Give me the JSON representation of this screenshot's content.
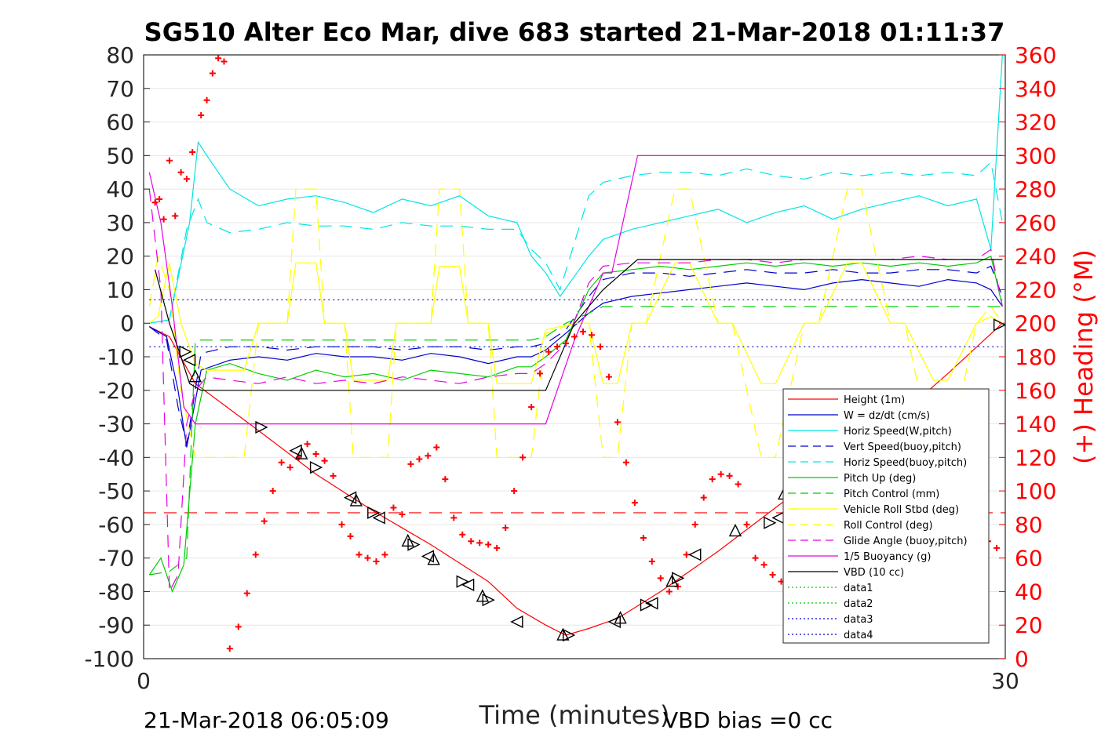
{
  "chart_data": {
    "type": "line",
    "title": "SG510 Alter Eco Mar, dive 683 started 21-Mar-2018 01:11:37",
    "xlabel": "Time (minutes)",
    "ylabel": "",
    "y2label": "(+) Heading (°M)",
    "xlim": [
      0,
      30
    ],
    "ylim": [
      -100,
      80
    ],
    "y2lim": [
      0,
      360
    ],
    "x_ticks": [
      "0",
      "30"
    ],
    "y_ticks": [
      "80",
      "70",
      "60",
      "50",
      "40",
      "30",
      "20",
      "10",
      "0",
      "-10",
      "-20",
      "-30",
      "-40",
      "-50",
      "-60",
      "-70",
      "-80",
      "-90",
      "-100"
    ],
    "y2_ticks": [
      "360",
      "340",
      "320",
      "300",
      "280",
      "260",
      "240",
      "220",
      "200",
      "180",
      "160",
      "140",
      "120",
      "100",
      "80",
      "60",
      "40",
      "20",
      "0"
    ],
    "grid": "horizontal",
    "legend_position": "bottom-right",
    "footer_left": "21-Mar-2018 06:05:09",
    "footer_right": "VBD bias =0 cc",
    "series": [
      {
        "name": "Height (1m)",
        "color": "#ff0000",
        "style": "solid",
        "x": [
          0.2,
          0.9,
          1.8,
          4.0,
          6.0,
          8.0,
          10.0,
          12.0,
          13.0,
          14.0,
          14.7,
          15.5,
          16.5,
          18.0,
          20.0,
          22.0,
          24.0,
          26.0,
          28.0,
          29.9
        ],
        "y": [
          -1,
          -4,
          -18,
          -32,
          -45,
          -56,
          -66,
          -77,
          -85,
          -90,
          -93,
          -91,
          -88,
          -80,
          -68,
          -55,
          -42,
          -30,
          -15,
          0
        ]
      },
      {
        "name": "W = dz/dt (cm/s)",
        "color": "#0000cc",
        "style": "solid",
        "x": [
          0.2,
          0.8,
          1.2,
          1.5,
          2.0,
          3,
          4,
          5,
          6,
          7,
          8,
          9,
          10,
          11,
          12,
          13,
          13.5,
          14,
          14.7,
          15.5,
          16,
          17,
          18,
          19,
          20,
          21,
          22,
          23,
          24,
          25,
          26,
          27,
          28,
          29,
          29.5,
          29.9
        ],
        "y": [
          -1,
          -4,
          -20,
          -37,
          -14,
          -11,
          -10,
          -11,
          -9,
          -10,
          -10,
          -11,
          -9,
          -10,
          -12,
          -10,
          -10,
          -8,
          -3,
          3,
          6,
          8,
          9,
          10,
          11,
          12,
          11,
          10,
          12,
          13,
          12,
          11,
          13,
          12,
          10,
          5
        ]
      },
      {
        "name": "Horiz Speed(W,pitch)",
        "color": "#00e5e5",
        "style": "solid",
        "x": [
          0.2,
          0.9,
          1.6,
          1.9,
          2.2,
          3,
          4,
          5,
          6,
          7,
          8,
          9,
          10,
          11,
          12,
          13,
          13.5,
          14,
          14.5,
          15.5,
          16,
          17,
          18,
          19,
          20,
          21,
          22,
          23,
          24,
          25,
          26,
          27,
          28,
          29,
          29.5,
          29.9
        ],
        "y": [
          0,
          1,
          30,
          54,
          50,
          40,
          35,
          37,
          38,
          36,
          33,
          37,
          35,
          38,
          32,
          30,
          20,
          15,
          8,
          20,
          25,
          28,
          30,
          32,
          34,
          30,
          33,
          35,
          31,
          34,
          36,
          38,
          35,
          37,
          22,
          80
        ]
      },
      {
        "name": "Vert Speed(buoy,pitch)",
        "color": "#0000cc",
        "style": "dashed",
        "x": [
          0.2,
          0.8,
          1.2,
          1.5,
          2.0,
          3,
          4,
          5,
          6,
          7,
          8,
          9,
          10,
          11,
          12,
          13,
          13.5,
          14,
          14.7,
          15.5,
          16,
          17,
          18,
          19,
          20,
          21,
          22,
          23,
          24,
          25,
          26,
          27,
          28,
          29,
          29.5,
          29.9
        ],
        "y": [
          -1,
          -5,
          -25,
          -36,
          -9,
          -7,
          -7,
          -8,
          -7,
          -7,
          -7,
          -8,
          -7,
          -7,
          -8,
          -7,
          -7,
          -6,
          -2,
          8,
          13,
          15,
          15,
          14,
          15,
          16,
          15,
          15,
          16,
          15,
          15,
          16,
          16,
          15,
          17,
          8
        ]
      },
      {
        "name": "Horiz Speed(buoy,pitch)",
        "color": "#00e5e5",
        "style": "dashed",
        "x": [
          0.2,
          0.9,
          1.5,
          1.9,
          2.2,
          3,
          4,
          5,
          6,
          7,
          8,
          9,
          10,
          11,
          12,
          13,
          13.5,
          14,
          14.5,
          15.5,
          16,
          17,
          18,
          19,
          20,
          21,
          22,
          23,
          24,
          25,
          26,
          27,
          28,
          29,
          29.5,
          29.9
        ],
        "y": [
          0,
          1,
          28,
          37,
          30,
          27,
          28,
          30,
          29,
          29,
          28,
          30,
          29,
          29,
          28,
          28,
          22,
          18,
          10,
          38,
          42,
          44,
          45,
          45,
          44,
          46,
          44,
          43,
          45,
          44,
          45,
          44,
          45,
          44,
          48,
          30
        ]
      },
      {
        "name": "Pitch Up (deg)",
        "color": "#00cc00",
        "style": "solid",
        "x": [
          0.2,
          0.6,
          1.0,
          1.4,
          1.8,
          2.2,
          3,
          4,
          5,
          6,
          7,
          8,
          9,
          10,
          11,
          12,
          13,
          13.5,
          14,
          14.7,
          15.5,
          16,
          17,
          18,
          19,
          20,
          21,
          22,
          23,
          24,
          25,
          26,
          27,
          28,
          29,
          29.5,
          29.9
        ],
        "y": [
          -75,
          -70,
          -80,
          -72,
          -30,
          -14,
          -12,
          -15,
          -17,
          -14,
          -16,
          -15,
          -17,
          -14,
          -15,
          -16,
          -13,
          -13,
          -10,
          -5,
          10,
          15,
          16,
          17,
          16,
          17,
          18,
          17,
          18,
          17,
          18,
          17,
          18,
          17,
          18,
          20,
          5
        ]
      },
      {
        "name": "Pitch Control (mm)",
        "color": "#00cc00",
        "style": "dashed",
        "x": [
          0.2,
          0.9,
          1.5,
          1.8,
          2.2,
          13.5,
          14,
          14.7,
          15.5,
          16,
          29.9
        ],
        "y": [
          -75,
          -74,
          -70,
          -5,
          -5,
          -5,
          -4,
          0,
          3,
          5,
          5
        ]
      },
      {
        "name": "Vehicle Roll Stbd (deg)",
        "color": "#ffff00",
        "style": "solid",
        "x": [
          0.2,
          0.5,
          0.9,
          1.3,
          1.8,
          2.2,
          3.5,
          4.0,
          5.0,
          5.3,
          6.0,
          6.3,
          7.0,
          7.3,
          8.5,
          8.8,
          10.0,
          10.3,
          11.0,
          11.3,
          12.0,
          12.3,
          13.5,
          14,
          15.0,
          15.5,
          16.0,
          16.5,
          17.0,
          17.5,
          18.5,
          19.0,
          20.0,
          20.5,
          21.5,
          22.0,
          23.0,
          23.5,
          24.5,
          25.0,
          26.0,
          26.5,
          27.5,
          28.0,
          29.0,
          29.5,
          29.9
        ],
        "y": [
          0,
          2,
          18,
          0,
          -12,
          -14,
          -14,
          0,
          0,
          18,
          18,
          0,
          0,
          -17,
          -17,
          0,
          0,
          17,
          17,
          0,
          0,
          -18,
          -18,
          -2,
          0,
          0,
          -18,
          -18,
          0,
          0,
          18,
          18,
          0,
          0,
          -18,
          -18,
          0,
          0,
          18,
          18,
          0,
          0,
          -17,
          -17,
          0,
          2,
          0
        ]
      },
      {
        "name": "Roll Control (deg)",
        "color": "#ffff00",
        "style": "dashed",
        "x": [
          0.2,
          0.5,
          0.9,
          1.3,
          1.8,
          2.2,
          3.5,
          4.0,
          5.0,
          5.3,
          6.0,
          6.3,
          7.0,
          7.3,
          8.5,
          8.8,
          10.0,
          10.3,
          11.0,
          11.3,
          12.0,
          12.3,
          13.5,
          14,
          15.0,
          15.5,
          16.0,
          16.5,
          17.0,
          17.5,
          18.5,
          19.0,
          20.0,
          20.5,
          21.5,
          22.0,
          23.0,
          23.5,
          24.5,
          25.0,
          26.0,
          26.5,
          27.5,
          28.0,
          29.0,
          29.5,
          29.9
        ],
        "y": [
          5,
          20,
          10,
          -20,
          -40,
          -40,
          -40,
          0,
          0,
          40,
          40,
          0,
          0,
          -40,
          -40,
          0,
          0,
          40,
          40,
          0,
          0,
          -40,
          -40,
          -3,
          0,
          0,
          -40,
          -40,
          0,
          0,
          40,
          40,
          0,
          0,
          -40,
          -40,
          0,
          0,
          40,
          40,
          0,
          0,
          -40,
          -40,
          0,
          5,
          0
        ]
      },
      {
        "name": "Glide Angle (buoy,pitch)",
        "color": "#e600e6",
        "style": "dashed",
        "x": [
          0.2,
          0.6,
          0.9,
          1.2,
          1.5,
          1.8,
          2.2,
          3,
          4,
          5,
          6,
          7,
          8,
          9,
          10,
          11,
          12,
          13,
          13.5,
          14,
          14.7,
          15.5,
          16,
          17,
          18,
          19,
          20,
          21,
          22,
          23,
          24,
          25,
          26,
          27,
          28,
          29,
          29.5,
          29.9
        ],
        "y": [
          40,
          10,
          -80,
          -75,
          -30,
          -20,
          -16,
          -17,
          -18,
          -16,
          -18,
          -17,
          -18,
          -16,
          -17,
          -18,
          -16,
          -15,
          -15,
          -12,
          -6,
          12,
          17,
          18,
          18,
          18,
          19,
          19,
          18,
          19,
          19,
          19,
          19,
          20,
          19,
          19,
          22,
          5
        ]
      },
      {
        "name": "1/5 Buoyancy (g)",
        "color": "#e600e6",
        "style": "solid",
        "x": [
          0.2,
          0.6,
          1.0,
          1.4,
          1.8,
          13.0,
          14.0,
          15.0,
          16.0,
          16.3,
          17.2,
          29.9
        ],
        "y": [
          45,
          30,
          5,
          -25,
          -30,
          -30,
          -30,
          -5,
          15,
          15,
          50,
          50
        ]
      },
      {
        "name": "VBD (10 cc)",
        "color": "#000000",
        "style": "solid",
        "x": [
          0.4,
          0.9,
          1.3,
          1.6,
          2.0,
          13.0,
          14.0,
          15.0,
          16.0,
          17.2,
          29.9
        ],
        "y": [
          16,
          0,
          -10,
          -18,
          -20,
          -20,
          -20,
          0,
          10,
          19,
          19
        ]
      },
      {
        "name": "data1",
        "color": "#00cc00",
        "style": "dotted",
        "x": [],
        "y": []
      },
      {
        "name": "data2",
        "color": "#00cc00",
        "style": "dotted",
        "x": [],
        "y": []
      },
      {
        "name": "data3",
        "color": "#0000cc",
        "style": "dotted",
        "x": [
          0.2,
          29.9
        ],
        "y": [
          7,
          7
        ]
      },
      {
        "name": "data4",
        "color": "#0000cc",
        "style": "dotted",
        "x": [
          0.2,
          29.9
        ],
        "y": [
          -7,
          -7
        ]
      }
    ],
    "heading_series": {
      "axis": "right",
      "color": "#ff0000",
      "marker": "+",
      "x": [
        0.4,
        0.55,
        0.7,
        0.9,
        1.1,
        1.3,
        1.5,
        1.7,
        2.0,
        2.2,
        2.4,
        2.6,
        2.8,
        3.0,
        3.3,
        3.6,
        3.9,
        4.2,
        4.5,
        4.8,
        5.1,
        5.4,
        5.7,
        6.0,
        6.3,
        6.6,
        6.9,
        7.2,
        7.5,
        7.8,
        8.1,
        8.4,
        8.7,
        9.0,
        9.3,
        9.6,
        9.9,
        10.2,
        10.5,
        10.8,
        11.1,
        11.4,
        11.7,
        12.0,
        12.3,
        12.6,
        12.9,
        13.2,
        13.5,
        13.8,
        14.1,
        14.4,
        14.7,
        15.0,
        15.3,
        15.6,
        15.9,
        16.2,
        16.5,
        16.8,
        17.1,
        17.4,
        17.7,
        18.0,
        18.3,
        18.6,
        18.9,
        19.2,
        19.5,
        19.8,
        20.1,
        20.4,
        20.7,
        21.0,
        21.3,
        21.6,
        21.9,
        22.2,
        22.5,
        22.8,
        23.1,
        23.4,
        23.7,
        24.0,
        24.3,
        24.6,
        24.9,
        25.2,
        25.5,
        25.8,
        26.1,
        26.4,
        26.7,
        27.0,
        27.3,
        27.6,
        27.9,
        28.2,
        28.5,
        28.8,
        29.1,
        29.4,
        29.7
      ],
      "y": [
        272,
        274,
        262,
        297,
        264,
        290,
        286,
        302,
        324,
        333,
        349,
        358,
        356,
        6,
        19,
        39,
        62,
        82,
        100,
        117,
        114,
        120,
        128,
        122,
        118,
        109,
        80,
        73,
        62,
        60,
        58,
        62,
        90,
        86,
        116,
        119,
        121,
        126,
        107,
        84,
        74,
        70,
        69,
        68,
        66,
        78,
        100,
        120,
        150,
        170,
        183,
        186,
        188,
        192,
        195,
        193,
        186,
        168,
        141,
        117,
        93,
        72,
        58,
        48,
        40,
        43,
        62,
        80,
        96,
        107,
        110,
        109,
        104,
        80,
        60,
        56,
        50,
        46,
        42,
        40,
        44,
        56,
        72,
        88,
        102,
        118,
        126,
        130,
        132,
        128,
        112,
        100,
        84,
        72,
        62,
        58,
        56,
        60,
        70,
        82,
        88,
        70,
        66
      ]
    },
    "reference_line": {
      "color": "#ff0000",
      "style": "dashed",
      "y": -56.5
    },
    "markers": {
      "color": "#000000",
      "x": [
        1.45,
        1.6,
        1.8,
        4.1,
        5.3,
        5.5,
        6.0,
        7.2,
        7.4,
        8.0,
        8.2,
        9.2,
        9.4,
        9.9,
        10.1,
        11.1,
        11.3,
        11.8,
        12.0,
        13.0,
        14.6,
        14.8,
        16.4,
        16.6,
        17.5,
        17.7,
        18.4,
        18.6,
        19.2,
        20.6,
        21.8,
        22.1,
        22.3,
        23.0,
        23.3,
        24.0,
        29.8
      ],
      "y": [
        -8.5,
        -11,
        -16,
        -31,
        -38,
        -39,
        -43,
        -52,
        -53,
        -56.5,
        -58,
        -65,
        -66,
        -69.5,
        -70.5,
        -77,
        -78,
        -81.5,
        -82.5,
        -89,
        -93,
        -93,
        -89,
        -88,
        -84,
        -83.5,
        -77,
        -76,
        -69,
        -62,
        -59.5,
        -58,
        -51,
        -50,
        -42,
        -35,
        -0.5
      ]
    }
  }
}
